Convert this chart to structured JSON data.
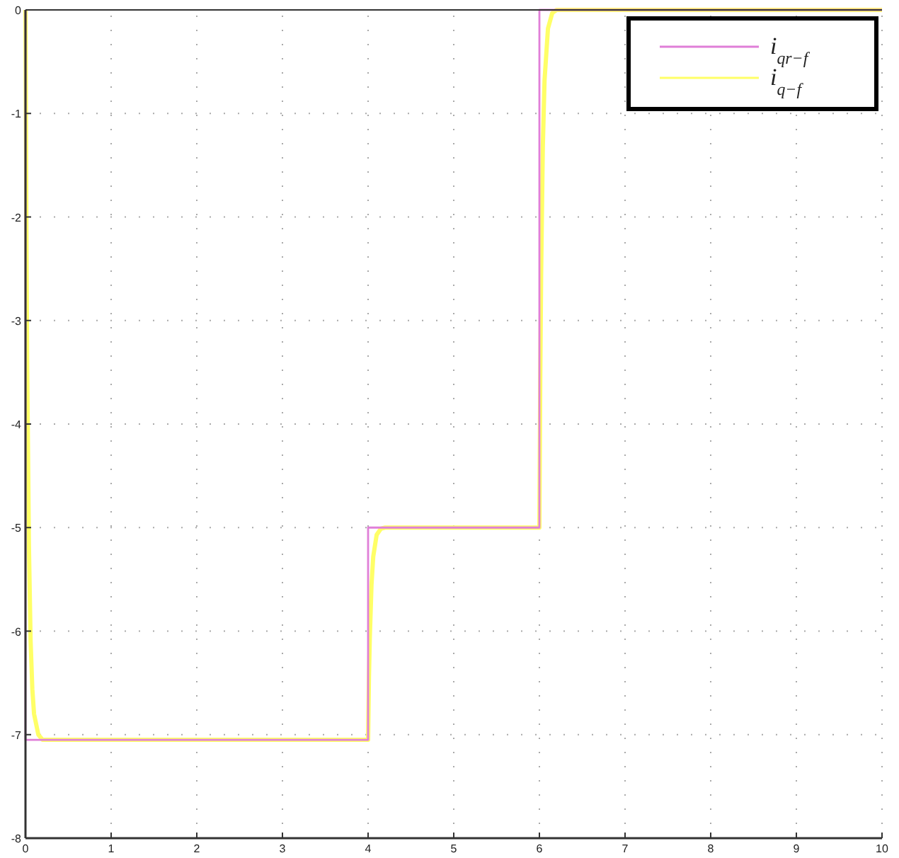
{
  "chart_data": {
    "type": "line",
    "xlim": [
      0,
      10
    ],
    "ylim": [
      -8,
      0
    ],
    "xticks": [
      0,
      1,
      2,
      3,
      4,
      5,
      6,
      7,
      8,
      9,
      10
    ],
    "yticks": [
      -8,
      -7,
      -6,
      -5,
      -4,
      -3,
      -2,
      -1,
      0
    ],
    "grid": true,
    "legend": "top right",
    "line_style": "solid",
    "marker": "none",
    "series": [
      {
        "name": "i$_{qr−f}$",
        "color": "#e07fd8",
        "x": [
          0,
          0,
          4,
          4,
          6,
          6,
          10
        ],
        "values": [
          0,
          -7.05,
          -7.05,
          -5,
          -5,
          0,
          0
        ]
      },
      {
        "name": "i$_{q−f}$",
        "color": "#ffff66",
        "x": [
          0,
          0.01,
          0.02,
          0.04,
          0.06,
          0.08,
          0.1,
          0.15,
          0.2,
          4,
          4.01,
          4.02,
          4.04,
          4.06,
          4.1,
          4.15,
          4.2,
          6,
          6.01,
          6.02,
          6.04,
          6.06,
          6.1,
          6.15,
          6.2,
          10
        ],
        "values": [
          0,
          -2.0,
          -3.43,
          -5.17,
          -6.1,
          -6.56,
          -6.8,
          -7.0,
          -7.05,
          -7.05,
          -6.45,
          -6.07,
          -5.55,
          -5.28,
          -5.07,
          -5.01,
          -5,
          -5,
          -3.58,
          -2.57,
          -1.32,
          -0.68,
          -0.18,
          -0.03,
          0,
          0
        ]
      }
    ]
  }
}
